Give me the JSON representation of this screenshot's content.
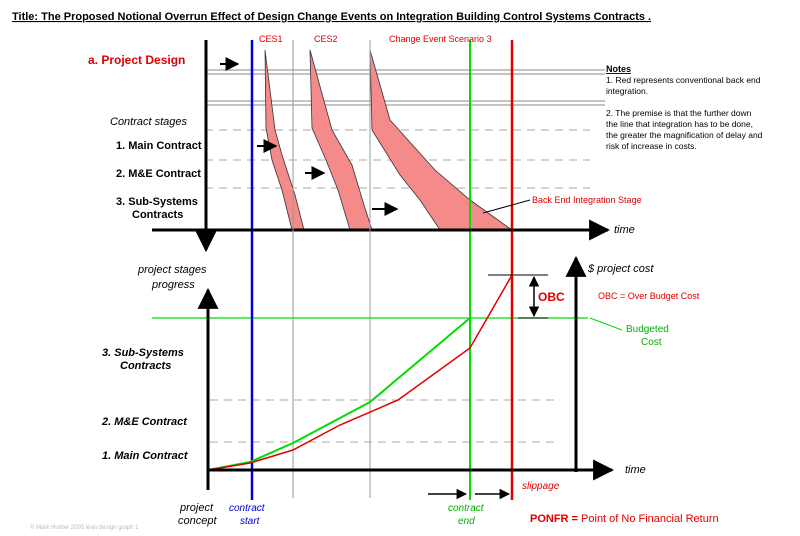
{
  "title": "Title: The Proposed Notional Overrun Effect of Design Change Events on Integration Building Control Systems Contracts .",
  "top": {
    "project_design": "a. Project Design",
    "contract_stages": "Contract stages",
    "stage1": "1. Main Contract",
    "stage2": "2. M&E Contract",
    "stage3a": "3. Sub-Systems",
    "stage3b": "Contracts",
    "ces1": "CES1",
    "ces2": "CES2",
    "ces3": "Change Event Scenario 3",
    "back_end": "Back End  Integration Stage",
    "time": "time"
  },
  "notes": {
    "heading": "Notes",
    "lines": [
      "1. Red represents conventional back end",
      "integration.",
      "",
      "2. The premise is that the further down",
      "the line that integration has to be done,",
      "the greater the magnification of delay and",
      "risk of increase in costs."
    ]
  },
  "bottom": {
    "progress_a": "project stages",
    "progress_b": "progress",
    "cost_label": "$ project cost",
    "obc": "OBC",
    "obc_def": "OBC = Over Budget Cost",
    "budgeted_a": "Budgeted",
    "budgeted_b": "Cost",
    "stage3a": "3. Sub-Systems",
    "stage3b": "Contracts",
    "stage2": "2. M&E Contract",
    "stage1": "1. Main Contract",
    "time": "time",
    "concept_a": "project",
    "concept_b": "concept",
    "start_a": "contract",
    "start_b": "start",
    "end_a": "contract",
    "end_b": "end",
    "slippage": "slippage",
    "ponfr_key": "PONFR =",
    "ponfr_def": " Point of No Financial Return"
  },
  "footer": "© Mark Hunter 2005 lean design graph 1",
  "colors": {
    "red": "#e00000",
    "green": "#00dd00",
    "blue": "#0000ee",
    "pink": "#f48a8a",
    "grey": "#999999"
  }
}
